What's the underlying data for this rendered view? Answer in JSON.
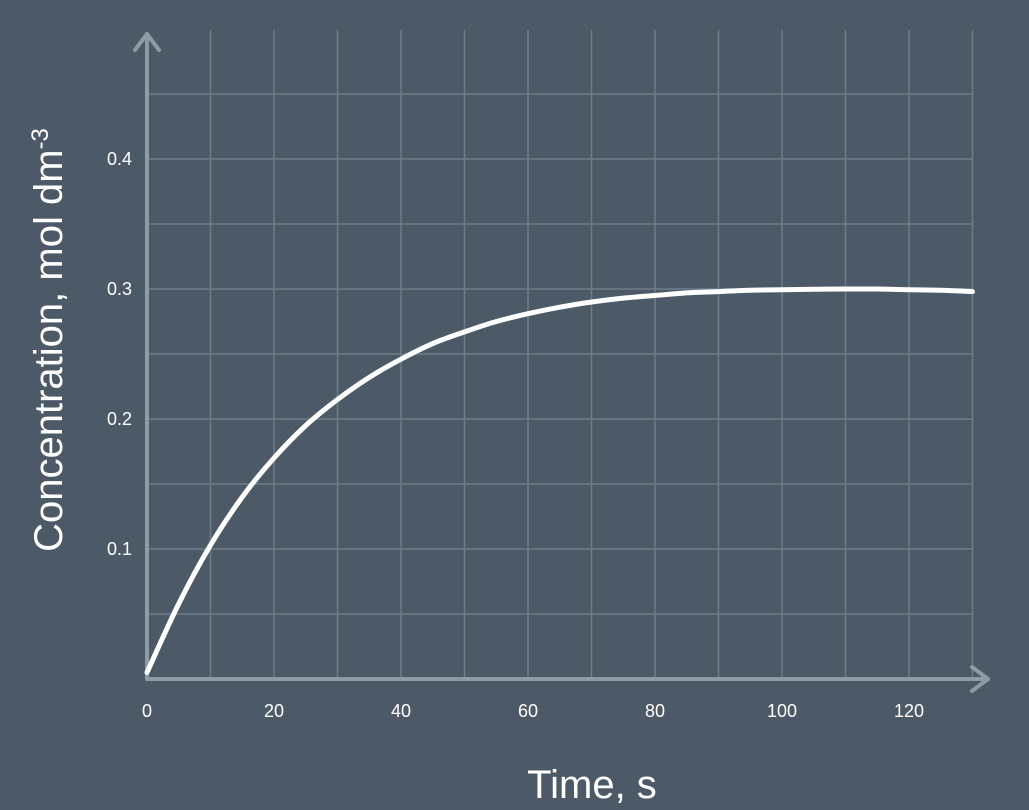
{
  "chart_data": {
    "type": "line",
    "xlabel": "Time, s",
    "ylabel": "Concentration, mol dm",
    "ylabel_superscript": "-3",
    "xlim": [
      0,
      130
    ],
    "ylim": [
      0,
      0.46
    ],
    "grid": true,
    "x_ticks": [
      {
        "value": 0,
        "label": "0"
      },
      {
        "value": 20,
        "label": "20"
      },
      {
        "value": 40,
        "label": "40"
      },
      {
        "value": 60,
        "label": "60"
      },
      {
        "value": 80,
        "label": "80"
      },
      {
        "value": 100,
        "label": "100"
      },
      {
        "value": 120,
        "label": "120"
      }
    ],
    "y_ticks": [
      {
        "value": 0.1,
        "label": "0.1"
      },
      {
        "value": 0.2,
        "label": "0.2"
      },
      {
        "value": 0.3,
        "label": "0.3"
      },
      {
        "value": 0.4,
        "label": "0.4"
      }
    ],
    "series": [
      {
        "x": [
          0,
          5,
          10,
          15,
          20,
          25,
          30,
          35,
          40,
          45,
          50,
          55,
          60,
          65,
          70,
          75,
          80,
          85,
          90,
          95,
          100,
          105,
          110,
          115,
          120,
          125,
          130
        ],
        "y": [
          0.005,
          0.058,
          0.103,
          0.14,
          0.17,
          0.195,
          0.215,
          0.232,
          0.246,
          0.258,
          0.267,
          0.275,
          0.281,
          0.286,
          0.29,
          0.293,
          0.295,
          0.297,
          0.298,
          0.299,
          0.2995,
          0.2998,
          0.3,
          0.3,
          0.2995,
          0.299,
          0.298
        ]
      }
    ]
  }
}
